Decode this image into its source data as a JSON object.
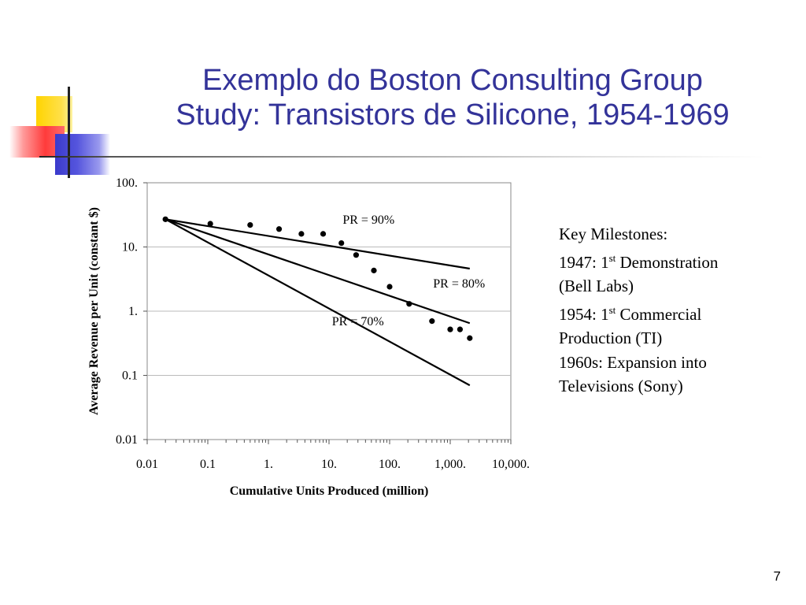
{
  "slide": {
    "title_line1": "Exemplo do Boston Consulting Group",
    "title_line2": "Study: Transistors de Silicone, 1954-1969",
    "page_number": "7",
    "milestones": {
      "heading": "Key Milestones:",
      "m1_prefix": "1947: 1",
      "m1_sup": "st",
      "m1_suffix": " Demonstration",
      "m1_line2": "(Bell Labs)",
      "m2_prefix": "1954:  1",
      "m2_sup": "st",
      "m2_suffix": " Commercial",
      "m2_line2": "Production (TI)",
      "m3_line1": "1960s:  Expansion into",
      "m3_line2": "Televisions (Sony)"
    },
    "colors": {
      "title": "#333399",
      "logo_yellow": "#ffd400",
      "logo_red": "#ff3b3b",
      "logo_blue": "#3a3acc"
    }
  },
  "chart_data": {
    "type": "scatter",
    "xlabel": "Cumulative Units Produced (million)",
    "ylabel": "Average Revenue per Unit (constant $)",
    "x_scale": "log",
    "y_scale": "log",
    "xlim": [
      0.01,
      10000
    ],
    "ylim": [
      0.01,
      100
    ],
    "x_tick_labels": [
      "0.01",
      "0.1",
      "1.",
      "10.",
      "100.",
      "1,000.",
      "10,000."
    ],
    "y_tick_labels": [
      "0.01",
      "0.1",
      "1.",
      "10.",
      "100."
    ],
    "grid": "horizontal",
    "legend": "none",
    "points": [
      {
        "x": 0.02,
        "y": 27
      },
      {
        "x": 0.11,
        "y": 23
      },
      {
        "x": 0.5,
        "y": 22
      },
      {
        "x": 1.5,
        "y": 19
      },
      {
        "x": 3.5,
        "y": 16
      },
      {
        "x": 8,
        "y": 16
      },
      {
        "x": 16,
        "y": 11.5
      },
      {
        "x": 28,
        "y": 7.5
      },
      {
        "x": 55,
        "y": 4.3
      },
      {
        "x": 100,
        "y": 2.4
      },
      {
        "x": 210,
        "y": 1.3
      },
      {
        "x": 500,
        "y": 0.7
      },
      {
        "x": 1000,
        "y": 0.52
      },
      {
        "x": 1450,
        "y": 0.52
      },
      {
        "x": 2100,
        "y": 0.38
      }
    ],
    "series": [
      {
        "name": "PR = 90%",
        "x": [
          0.02,
          2100
        ],
        "y": [
          27,
          4.6
        ],
        "label_pos": {
          "x": 45,
          "y": 23
        }
      },
      {
        "name": "PR = 80%",
        "x": [
          0.02,
          2100
        ],
        "y": [
          27,
          0.65
        ],
        "label_pos": {
          "x": 1400,
          "y": 2.35
        }
      },
      {
        "name": "PR = 70%",
        "x": [
          0.02,
          2100
        ],
        "y": [
          27,
          0.07
        ],
        "label_pos": {
          "x": 30,
          "y": 0.6
        }
      }
    ]
  }
}
